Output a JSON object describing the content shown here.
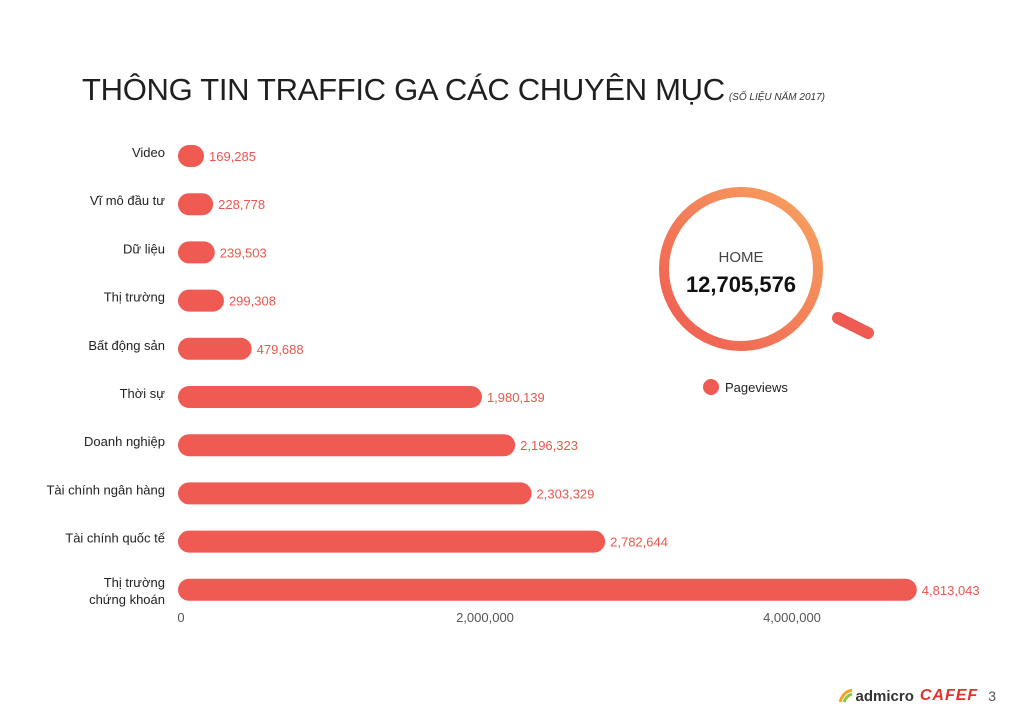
{
  "header": {
    "title": "THÔNG TIN TRAFFIC GA CÁC CHUYÊN MỤC",
    "subtitle": "(SỐ LIỆU NĂM 2017)"
  },
  "chart_data": {
    "type": "bar",
    "orientation": "horizontal",
    "categories": [
      "Video",
      "Vĩ mô đầu tư",
      "Dữ liệu",
      "Thị trường",
      "Bất động sản",
      "Thời sự",
      "Doanh nghiệp",
      "Tài chính ngân hàng",
      "Tài chính quốc tế",
      "Thị trường chứng khoán"
    ],
    "values": [
      169285,
      228778,
      239503,
      299308,
      479688,
      1980139,
      2196323,
      2303329,
      2782644,
      4813043
    ],
    "value_labels": [
      "169,285",
      "228,778",
      "239,503",
      "299,308",
      "479,688",
      "1,980,139",
      "2,196,323",
      "2,303,329",
      "2,782,644",
      "4,813,043"
    ],
    "xticks": [
      0,
      2000000,
      4000000
    ],
    "xtick_labels": [
      "0",
      "2,000,000",
      "4,000,000"
    ],
    "xlim": [
      0,
      5200000
    ],
    "bar_color": "#ef5a52",
    "grid": false,
    "legend": {
      "label": "Pageviews",
      "position": "right"
    }
  },
  "home": {
    "label": "HOME",
    "value": "12,705,576",
    "ring_start_color": "#ef5a52",
    "ring_end_color": "#f7a45f"
  },
  "footer": {
    "brand1": "admicro",
    "brand2": "CAFEF",
    "page": "3"
  }
}
